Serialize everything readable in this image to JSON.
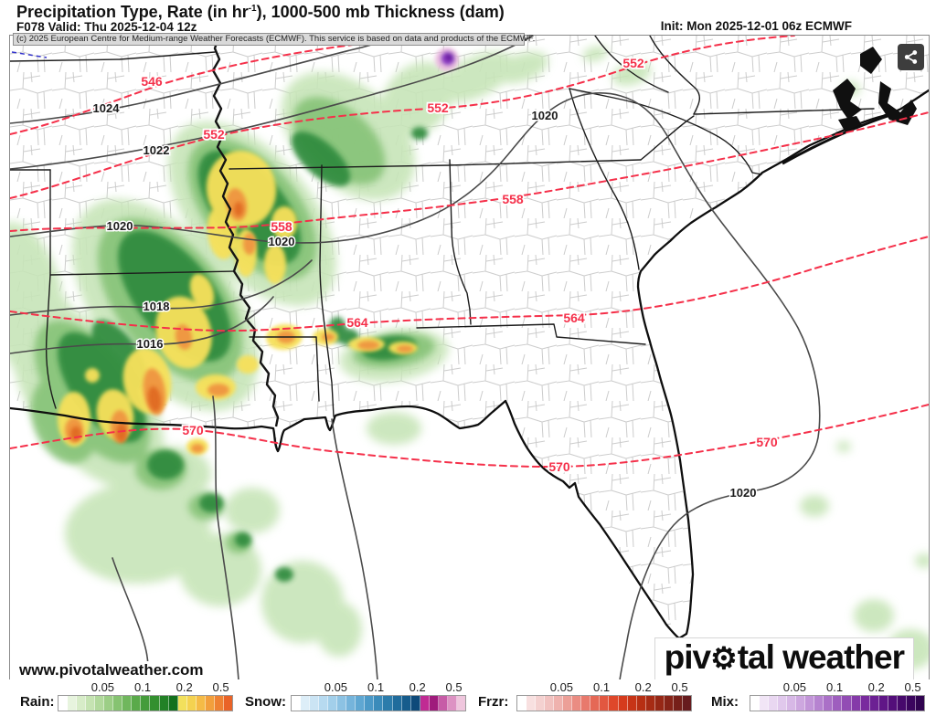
{
  "header": {
    "title_pre": "Precipitation Type, Rate (in hr",
    "title_sup": "-1",
    "title_post": "), 1000-500 mb Thickness (dam)",
    "valid_label": "F078 Valid: Thu 2025-12-04 12z",
    "init_label": "Init: Mon 2025-12-01 06z ECMWF",
    "copyright": "(c) 2025 European Centre for Medium-range Weather Forecasts (ECMWF). This service is based on data and products of the ECMWF."
  },
  "map": {
    "watermark": "www.pivotalweather.com",
    "logo_pre": "piv",
    "logo_gear": "⚙",
    "logo_post": "tal weather",
    "thickness_contour_color": "#f5304a",
    "pressure_contour_color": "#4a4a4a",
    "thickness_labels": [
      "546",
      "552",
      "552",
      "552",
      "558",
      "558",
      "564",
      "564",
      "570",
      "570",
      "570"
    ],
    "pressure_labels": [
      "1024",
      "1022",
      "1020",
      "1020",
      "1020",
      "1018",
      "1016",
      "1020"
    ]
  },
  "legend": {
    "groups": [
      {
        "label": "Rain:",
        "ticks": [
          "0.05",
          "0.1",
          "0.2",
          "0.5"
        ],
        "colors": [
          "#ffffff",
          "#e7f4de",
          "#d7ecc8",
          "#c5e3b2",
          "#b1d99c",
          "#9cce86",
          "#86c371",
          "#70b75d",
          "#5aaa4a",
          "#459c3b",
          "#33902f",
          "#228126",
          "#12701d",
          "#f2e05c",
          "#f4d250",
          "#f5bb46",
          "#f29f3c",
          "#ee8132",
          "#e96327"
        ]
      },
      {
        "label": "Snow:",
        "ticks": [
          "0.05",
          "0.1",
          "0.2",
          "0.5"
        ],
        "colors": [
          "#ffffff",
          "#ddeef8",
          "#cbe4f4",
          "#b7daf0",
          "#a2cfea",
          "#8cc2e3",
          "#75b4db",
          "#5fa7d2",
          "#4b99c7",
          "#3a8bba",
          "#2c7cab",
          "#206c9c",
          "#165c8c",
          "#0e4a7a",
          "#c02b93",
          "#9f1b7c",
          "#c75ca7",
          "#dd92c3",
          "#efc6dd"
        ]
      },
      {
        "label": "Frzr:",
        "ticks": [
          "0.05",
          "0.1",
          "0.2",
          "0.5"
        ],
        "colors": [
          "#ffffff",
          "#f8e0e0",
          "#f4d1d0",
          "#f1c2c0",
          "#efb2ae",
          "#ec9f97",
          "#ea8c82",
          "#e8796c",
          "#e56856",
          "#e25740",
          "#df472a",
          "#d63b1c",
          "#c73416",
          "#b72f13",
          "#a62b14",
          "#962715",
          "#862317",
          "#761f19",
          "#671b1e"
        ]
      },
      {
        "label": "Mix:",
        "ticks": [
          "0.05",
          "0.1",
          "0.2",
          "0.5"
        ],
        "colors": [
          "#ffffff",
          "#f1e5f6",
          "#e9d7f1",
          "#e0c8ec",
          "#d7b8e6",
          "#cda7df",
          "#c295d8",
          "#b683d0",
          "#aa70c7",
          "#9e5ebe",
          "#924cb4",
          "#853aa9",
          "#792b9e",
          "#6c2093",
          "#601687",
          "#530e7a",
          "#47096c",
          "#3b055e",
          "#300350"
        ]
      }
    ]
  }
}
